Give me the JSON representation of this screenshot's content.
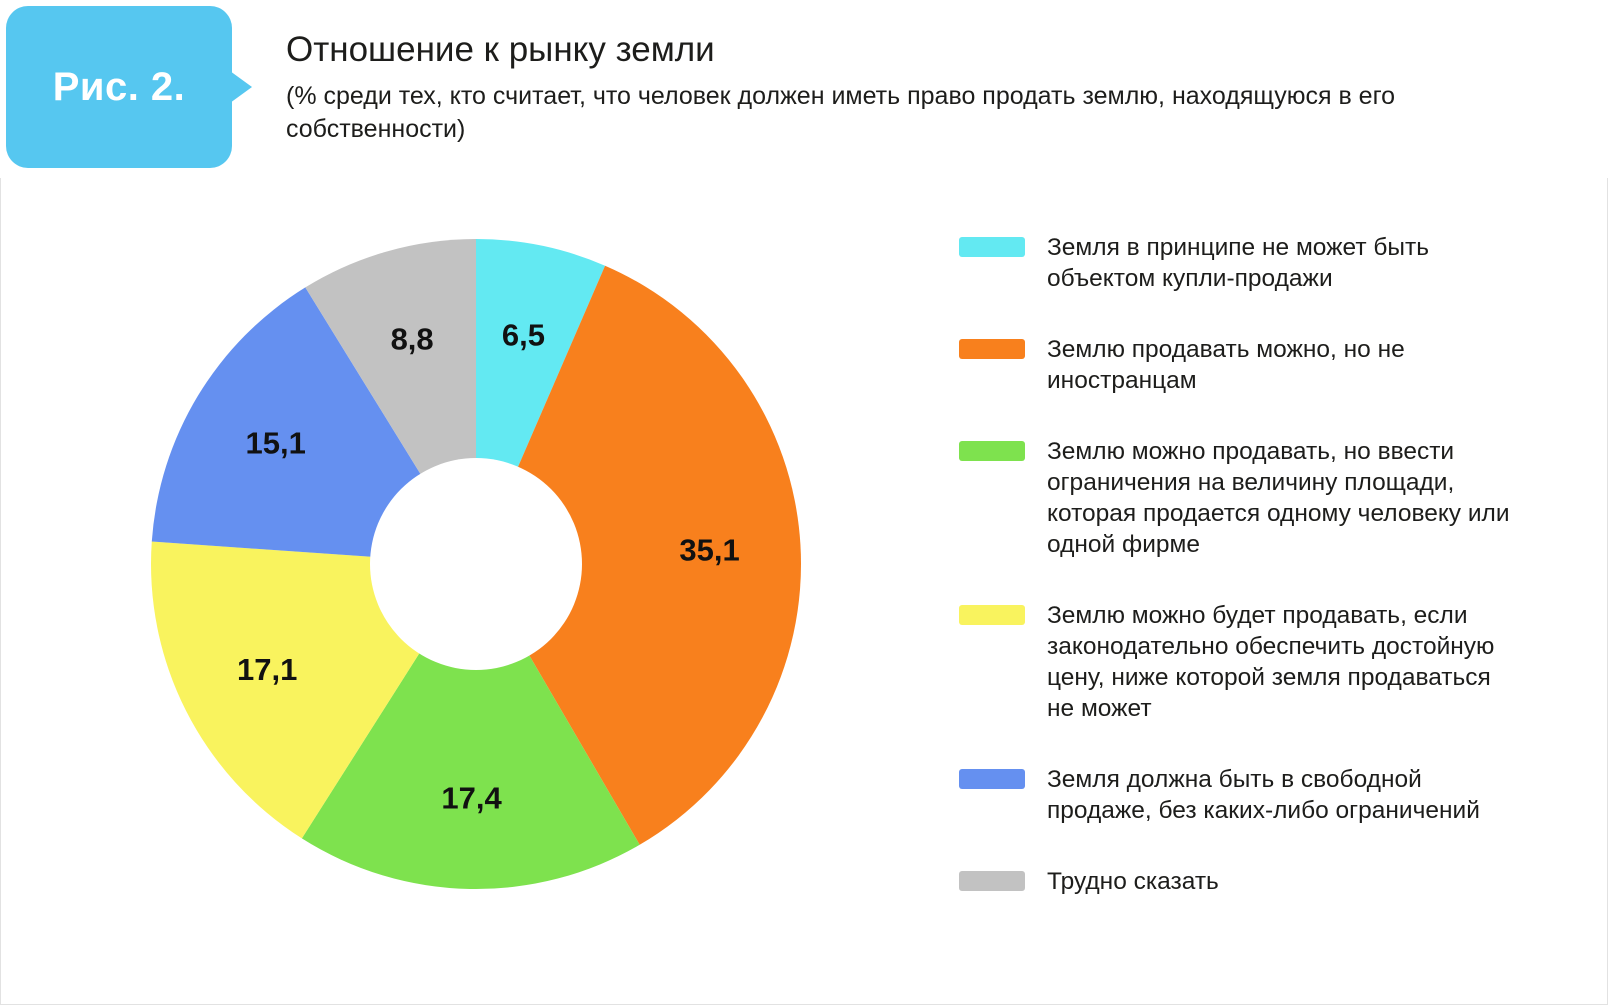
{
  "figure_badge": "Рис. 2.",
  "header": {
    "title": "Отношение к рынку земли",
    "subtitle": "(% среди тех, кто считает, что человек должен иметь право продать землю, находящуюся в его собственности)"
  },
  "chart_data": {
    "type": "pie",
    "donut": true,
    "start_angle_deg": 0,
    "direction": "clockwise",
    "legend_position": "right",
    "units": "%",
    "slices": [
      {
        "label": "Земля в принципе не может быть объектом купли-продажи",
        "value": 6.5,
        "display": "6,5",
        "color": "#63e9f2"
      },
      {
        "label": "Землю продавать можно, но не иностранцам",
        "value": 35.1,
        "display": "35,1",
        "color": "#f8801d"
      },
      {
        "label": "Землю можно продавать, но ввести ограничения на величину площади, которая продается одному человеку или одной фирме",
        "value": 17.4,
        "display": "17,4",
        "color": "#7ee24e"
      },
      {
        "label": "Землю можно будет продавать, если законодательно обеспечить достойную цену, ниже которой земля продаваться не может",
        "value": 17.1,
        "display": "17,1",
        "color": "#f9f35e"
      },
      {
        "label": "Земля должна быть в свободной продаже, без каких-либо ограничений",
        "value": 15.1,
        "display": "15,1",
        "color": "#6590f0"
      },
      {
        "label": "Трудно сказать",
        "value": 8.8,
        "display": "8,8",
        "color": "#c2c2c2"
      }
    ]
  },
  "colors": {
    "badge": "#56c7f0",
    "hole": "#ffffff",
    "label_text": "#111111"
  }
}
